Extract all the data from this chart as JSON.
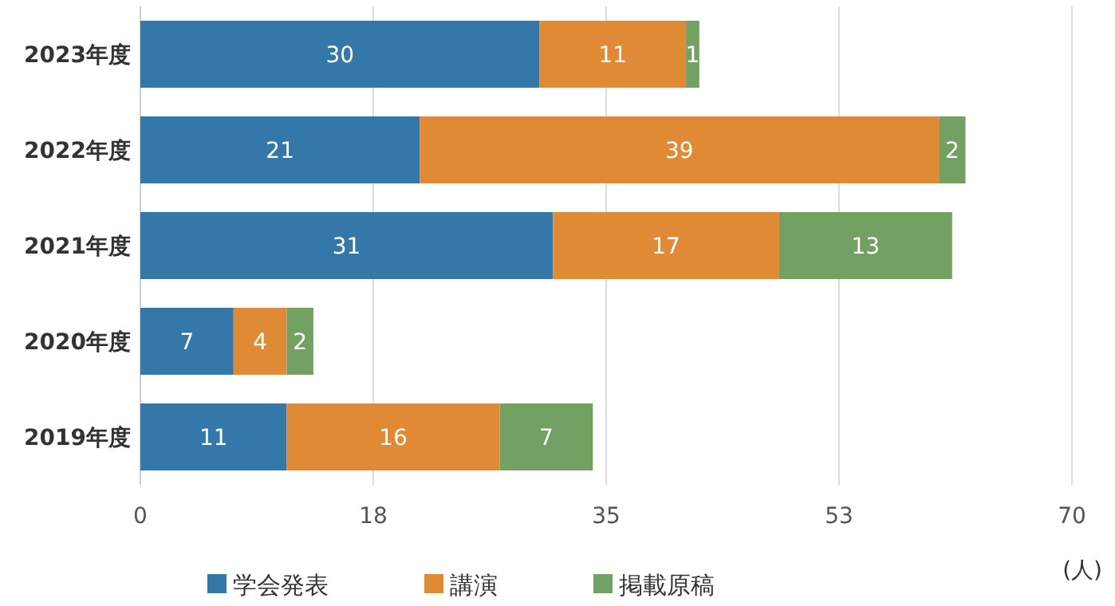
{
  "chart_data": {
    "type": "bar",
    "orientation": "horizontal",
    "stacked": true,
    "categories": [
      "2023年度",
      "2022年度",
      "2021年度",
      "2020年度",
      "2019年度"
    ],
    "series": [
      {
        "name": "学会発表",
        "color": "#3378a8",
        "values": [
          30,
          21,
          31,
          7,
          11
        ]
      },
      {
        "name": "講演",
        "color": "#e08a35",
        "values": [
          11,
          39,
          17,
          4,
          16
        ]
      },
      {
        "name": "掲載原稿",
        "color": "#73a063",
        "values": [
          1,
          2,
          13,
          2,
          7
        ]
      }
    ],
    "xlim": [
      0,
      70
    ],
    "xticks": [
      0,
      {
        "value": 17.5,
        "label": "18"
      },
      35,
      {
        "value": 52.5,
        "label": "53"
      },
      70
    ],
    "xlabel": "(人)",
    "grid": "x",
    "legend": "bottom",
    "data_labels": true
  }
}
